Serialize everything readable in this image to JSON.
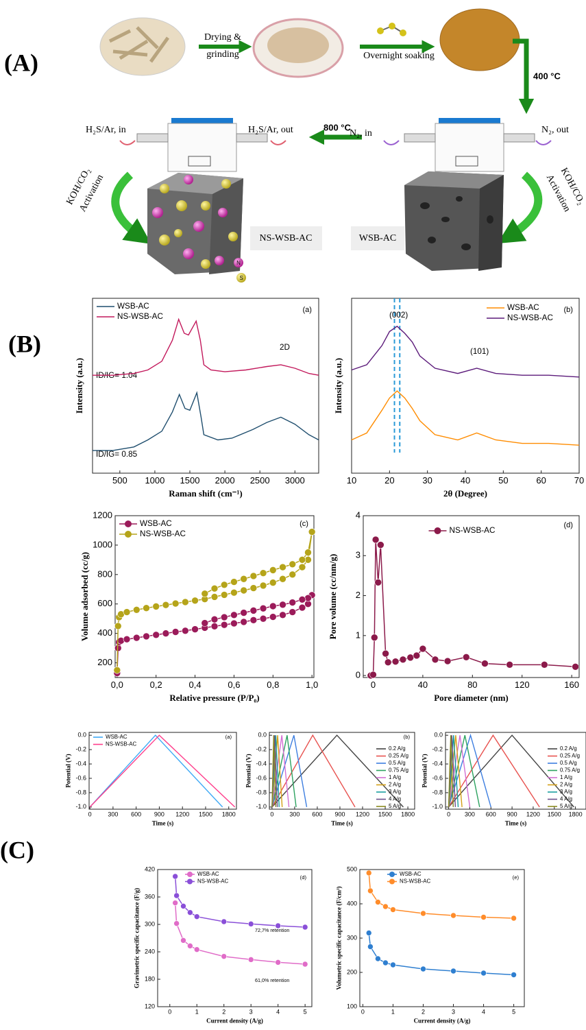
{
  "panel_labels": [
    "(A)",
    "(B)",
    "(C)"
  ],
  "scheme": {
    "drying_label": [
      "Drying &",
      "grinding"
    ],
    "soaking_label": "Overnight soaking",
    "carbonization_temp": "400 °C",
    "sulfurization_temp": "800 °C",
    "gas_left_in": "H₂S/Ar, in",
    "gas_left_out": "H₂S/Ar, out",
    "gas_right_in": "N₂, in",
    "gas_right_out": "N₂, out",
    "activation_left": [
      "KOH/CO₂",
      "Activation"
    ],
    "activation_right": [
      "KOH/CO₂",
      "Activation"
    ],
    "product_left": "NS-WSB-AC",
    "product_right": "WSB-AC",
    "dopant_legend": [
      "N",
      "S"
    ]
  },
  "chart_data": [
    {
      "type": "line",
      "tag": "(a)",
      "xlabel": "Raman shift (cm⁻¹)",
      "ylabel": "Intensity (a.u.)",
      "xlim": [
        110,
        3340
      ],
      "ylim": [
        0,
        10
      ],
      "xticks": [
        500,
        1000,
        1500,
        2000,
        2500,
        3000
      ],
      "legend": "upper left",
      "marker": false,
      "annotations": [
        "ID/IG= 1.04",
        "ID/IG= 0.85",
        "2D"
      ],
      "series": [
        {
          "name": "WSB-AC",
          "color": "#1f4e6e",
          "x": [
            110,
            400,
            700,
            900,
            1100,
            1250,
            1350,
            1430,
            1500,
            1600,
            1660,
            1700,
            1900,
            2100,
            2400,
            2600,
            2800,
            3000,
            3200,
            3340
          ],
          "values": [
            1.3,
            1.3,
            1.5,
            1.9,
            2.4,
            3.5,
            4.5,
            3.7,
            3.6,
            4.6,
            3.2,
            2.2,
            1.9,
            2.0,
            2.5,
            2.9,
            3.2,
            2.8,
            2.2,
            1.9
          ]
        },
        {
          "name": "NS-WSB-AC",
          "color": "#c2185b",
          "x": [
            110,
            400,
            700,
            900,
            1100,
            1250,
            1340,
            1420,
            1480,
            1590,
            1650,
            1700,
            1800,
            2000,
            2300,
            2600,
            2800,
            3000,
            3200,
            3340
          ],
          "values": [
            5.6,
            5.6,
            5.7,
            5.9,
            6.4,
            7.6,
            8.8,
            8.0,
            7.9,
            8.7,
            7.6,
            6.2,
            5.9,
            5.8,
            5.9,
            6.1,
            6.2,
            6.0,
            5.7,
            5.6
          ]
        }
      ]
    },
    {
      "type": "line",
      "tag": "(b)",
      "xlabel": "2θ (Degree)",
      "ylabel": "Intensity (a.u.)",
      "xlim": [
        10,
        70
      ],
      "ylim": [
        0,
        10
      ],
      "xticks": [
        10,
        20,
        30,
        40,
        50,
        60,
        70
      ],
      "legend": "upper right",
      "marker": false,
      "annotations": [
        "(002)",
        "(101)"
      ],
      "reference_lines": [
        21.3,
        22.7
      ],
      "series": [
        {
          "name": "WSB-AC",
          "color": "#ff8c00",
          "x": [
            10,
            14,
            18,
            20,
            22,
            24,
            26,
            28,
            32,
            38,
            43,
            48,
            55,
            62,
            70
          ],
          "values": [
            1.9,
            2.3,
            3.6,
            4.3,
            4.7,
            4.3,
            3.7,
            3.0,
            2.2,
            1.9,
            2.3,
            1.9,
            1.7,
            1.7,
            1.6
          ]
        },
        {
          "name": "NS-WSB-AC",
          "color": "#5b1a7a",
          "x": [
            10,
            14,
            18,
            20,
            22,
            24,
            26,
            28,
            32,
            38,
            43,
            48,
            55,
            62,
            70
          ],
          "values": [
            5.9,
            6.2,
            7.3,
            8.1,
            8.4,
            8.0,
            7.5,
            6.7,
            6.0,
            5.7,
            6.0,
            5.7,
            5.6,
            5.6,
            5.5
          ]
        }
      ]
    },
    {
      "type": "line",
      "tag": "(c)",
      "xlabel": "Relative pressure (P/P₀)",
      "ylabel": "Volume adsorbed (cc/g)",
      "xlim": [
        -0.01,
        1.01
      ],
      "ylim": [
        100,
        1200
      ],
      "xticks": [
        {
          "value": 0,
          "label": "0,0"
        },
        {
          "value": 0.2,
          "label": "0,2"
        },
        {
          "value": 0.4,
          "label": "0,4"
        },
        {
          "value": 0.6,
          "label": "0,6"
        },
        {
          "value": 0.8,
          "label": "0,8"
        },
        {
          "value": 1,
          "label": "1,0"
        }
      ],
      "yticks": [
        200,
        400,
        600,
        800,
        1000,
        1200
      ],
      "legend": "upper left",
      "marker": true,
      "series": [
        {
          "name": "WSB-AC",
          "color": "#9b1b5a",
          "x": [
            0,
            0.005,
            0.01,
            0.02,
            0.05,
            0.1,
            0.15,
            0.2,
            0.25,
            0.3,
            0.35,
            0.4,
            0.45,
            0.5,
            0.55,
            0.6,
            0.65,
            0.7,
            0.75,
            0.8,
            0.85,
            0.9,
            0.95,
            0.98,
            1.0,
            0.98,
            0.95,
            0.9,
            0.85,
            0.8,
            0.75,
            0.7,
            0.65,
            0.6,
            0.55,
            0.5,
            0.45
          ],
          "values": [
            130,
            300,
            340,
            350,
            360,
            370,
            380,
            390,
            400,
            410,
            418,
            428,
            438,
            448,
            458,
            468,
            478,
            490,
            500,
            512,
            525,
            545,
            575,
            600,
            660,
            640,
            630,
            610,
            595,
            585,
            570,
            555,
            540,
            525,
            510,
            495,
            470
          ]
        },
        {
          "name": "NS-WSB-AC",
          "color": "#b5a41a",
          "x": [
            0,
            0.005,
            0.01,
            0.02,
            0.05,
            0.1,
            0.15,
            0.2,
            0.25,
            0.3,
            0.35,
            0.4,
            0.45,
            0.5,
            0.55,
            0.6,
            0.65,
            0.7,
            0.75,
            0.8,
            0.85,
            0.9,
            0.95,
            0.98,
            1.0,
            0.98,
            0.95,
            0.9,
            0.85,
            0.8,
            0.75,
            0.7,
            0.65,
            0.6,
            0.55,
            0.5,
            0.45
          ],
          "values": [
            150,
            450,
            510,
            530,
            545,
            560,
            572,
            583,
            593,
            603,
            613,
            623,
            633,
            648,
            662,
            677,
            692,
            708,
            725,
            745,
            770,
            800,
            850,
            900,
            1090,
            950,
            900,
            870,
            850,
            830,
            810,
            790,
            770,
            750,
            730,
            705,
            670
          ]
        }
      ]
    },
    {
      "type": "line",
      "tag": "(d)",
      "xlabel": "Pore diameter (nm)",
      "ylabel": "Pore volume (cc/nm/g)",
      "xlim": [
        -8,
        166
      ],
      "ylim": [
        -0.05,
        4
      ],
      "xticks": [
        0,
        40,
        80,
        120,
        160
      ],
      "yticks": [
        0,
        1,
        2,
        3,
        4
      ],
      "legend": "upper center",
      "marker": true,
      "series": [
        {
          "name": "NS-WSB-AC",
          "color": "#8b1a4a",
          "x": [
            -2,
            0,
            1,
            2,
            4,
            6,
            10,
            12,
            18,
            24,
            30,
            35,
            40,
            50,
            60,
            75,
            90,
            110,
            138,
            163
          ],
          "values": [
            0,
            0.02,
            0.95,
            3.4,
            2.33,
            3.27,
            0.55,
            0.33,
            0.35,
            0.4,
            0.45,
            0.5,
            0.67,
            0.4,
            0.36,
            0.46,
            0.3,
            0.27,
            0.27,
            0.22
          ]
        }
      ]
    },
    {
      "type": "line",
      "tag": "(a)",
      "xlabel": "Time (s)",
      "ylabel": "Potential (V)",
      "xlim": [
        -10,
        1900
      ],
      "ylim": [
        -1.03,
        0.04
      ],
      "xticks": [
        0,
        300,
        600,
        900,
        1200,
        1500,
        1800
      ],
      "yticks": [
        {
          "value": 0,
          "label": "0.0"
        },
        -0.2,
        -0.4,
        -0.6,
        -0.8,
        {
          "value": -1,
          "label": "-1.0"
        }
      ],
      "legend": "upper left",
      "marker": false,
      "series": [
        {
          "name": "WSB-AC",
          "color": "#3fa9f5",
          "x": [
            0,
            850,
            1720
          ],
          "values": [
            -1,
            0,
            -1
          ]
        },
        {
          "name": "NS-WSB-AC",
          "color": "#ff3d8b",
          "x": [
            0,
            900,
            1880
          ],
          "values": [
            -1,
            0,
            -1
          ]
        }
      ]
    },
    {
      "type": "line",
      "tag": "(b)",
      "xlabel": "Time (s)",
      "ylabel": "Potential (V)",
      "xlim": [
        -35,
        1890
      ],
      "ylim": [
        -1.03,
        0.04
      ],
      "xticks": [
        0,
        300,
        600,
        900,
        1200,
        1500,
        1800
      ],
      "yticks": [
        {
          "value": 0,
          "label": "0.0"
        },
        -0.2,
        -0.4,
        -0.6,
        -0.8,
        {
          "value": -1,
          "label": "-1.0"
        }
      ],
      "legend": "right",
      "marker": false,
      "series": [
        {
          "name": "0.2 A/g",
          "color": "#444444",
          "x": [
            0,
            860,
            1740
          ],
          "values": [
            -1,
            0,
            -1
          ]
        },
        {
          "name": "0.25 A/g",
          "color": "#e8524f",
          "x": [
            0,
            540,
            1100
          ],
          "values": [
            -1,
            0,
            -1
          ]
        },
        {
          "name": "0.5 A/g",
          "color": "#3d7ee0",
          "x": [
            0,
            290,
            460
          ],
          "values": [
            -1,
            0,
            -1
          ]
        },
        {
          "name": "0.75 A/g",
          "color": "#2ca25f",
          "x": [
            0,
            200,
            320
          ],
          "values": [
            -1,
            0,
            -1
          ]
        },
        {
          "name": "1 A/g",
          "color": "#d36fd3",
          "x": [
            0,
            130,
            225
          ],
          "values": [
            -1,
            0,
            -1
          ]
        },
        {
          "name": "2 A/g",
          "color": "#d4a017",
          "x": [
            0,
            75,
            135
          ],
          "values": [
            -1,
            0,
            -1
          ]
        },
        {
          "name": "3 A/g",
          "color": "#1a9fa0",
          "x": [
            0,
            50,
            95
          ],
          "values": [
            -1,
            0,
            -1
          ]
        },
        {
          "name": "4 A/g",
          "color": "#6b4f8a",
          "x": [
            0,
            35,
            70
          ],
          "values": [
            -1,
            0,
            -1
          ]
        },
        {
          "name": "5 A/g",
          "color": "#8a8a20",
          "x": [
            0,
            22,
            50
          ],
          "values": [
            -1,
            0,
            -1
          ]
        }
      ]
    },
    {
      "type": "line",
      "xlabel": "Time (s)",
      "ylabel": "Potential (V)",
      "xlim": [
        -45,
        1950
      ],
      "ylim": [
        -1.03,
        0.04
      ],
      "xticks": [
        0,
        300,
        600,
        900,
        1200,
        1500,
        1800
      ],
      "yticks": [
        {
          "value": 0,
          "label": "0.0"
        },
        -0.2,
        -0.4,
        -0.6,
        -0.8,
        {
          "value": -1,
          "label": "-1.0"
        }
      ],
      "legend": "right",
      "marker": false,
      "series": [
        {
          "name": "0.2 A/g",
          "color": "#444444",
          "x": [
            0,
            900,
            1780
          ],
          "values": [
            -1,
            0,
            -1
          ]
        },
        {
          "name": "0.25 A/g",
          "color": "#e8524f",
          "x": [
            0,
            630,
            1290
          ],
          "values": [
            -1,
            0,
            -1
          ]
        },
        {
          "name": "0.5 A/g",
          "color": "#3d7ee0",
          "x": [
            0,
            310,
            600
          ],
          "values": [
            -1,
            0,
            -1
          ]
        },
        {
          "name": "0.75 A/g",
          "color": "#2ca25f",
          "x": [
            0,
            230,
            440
          ],
          "values": [
            -1,
            0,
            -1
          ]
        },
        {
          "name": "1 A/g",
          "color": "#d36fd3",
          "x": [
            0,
            160,
            300
          ],
          "values": [
            -1,
            0,
            -1
          ]
        },
        {
          "name": "2 A/g",
          "color": "#d4a017",
          "x": [
            0,
            100,
            190
          ],
          "values": [
            -1,
            0,
            -1
          ]
        },
        {
          "name": "3 A/g",
          "color": "#1a9fa0",
          "x": [
            0,
            70,
            135
          ],
          "values": [
            -1,
            0,
            -1
          ]
        },
        {
          "name": "4 A/g",
          "color": "#6b4f8a",
          "x": [
            0,
            45,
            95
          ],
          "values": [
            -1,
            0,
            -1
          ]
        },
        {
          "name": "5 A/g",
          "color": "#8a8a20",
          "x": [
            0,
            30,
            65
          ],
          "values": [
            -1,
            0,
            -1
          ]
        }
      ]
    },
    {
      "type": "line",
      "tag": "(d)",
      "xlabel": "Current density (A/g)",
      "ylabel": "Gravimetric specific capacitance (F/g)",
      "xlim": [
        -0.45,
        5.25
      ],
      "ylim": [
        120,
        420
      ],
      "xticks": [
        0,
        1,
        2,
        3,
        4,
        5
      ],
      "yticks": [
        120,
        180,
        240,
        300,
        360,
        420
      ],
      "legend": "upper left",
      "marker": true,
      "annotations": [
        "72,7% retention",
        "61,0% retention"
      ],
      "series": [
        {
          "name": "WSB-AC",
          "color": "#e06cc8",
          "x": [
            0.2,
            0.25,
            0.5,
            0.75,
            1,
            2,
            3,
            4,
            5
          ],
          "values": [
            347,
            302,
            265,
            253,
            245,
            230,
            223,
            217,
            213
          ]
        },
        {
          "name": "NS-WSB-AC",
          "color": "#8a4fd8",
          "x": [
            0.2,
            0.25,
            0.5,
            0.75,
            1,
            2,
            3,
            4,
            5
          ],
          "values": [
            405,
            363,
            340,
            326,
            317,
            306,
            301,
            297,
            294
          ]
        }
      ]
    },
    {
      "type": "line",
      "tag": "(e)",
      "xlabel": "Current density (A/g)",
      "ylabel": "Volumetric specific capacitance (F/cm³)",
      "xlim": [
        -0.1,
        5.35
      ],
      "ylim": [
        100,
        500
      ],
      "xticks": [
        0,
        1,
        2,
        3,
        4,
        5
      ],
      "yticks": [
        100,
        200,
        300,
        400,
        500
      ],
      "legend": "upper left",
      "marker": true,
      "series": [
        {
          "name": "WSB-AC",
          "color": "#2f7fd0",
          "x": [
            0.2,
            0.25,
            0.5,
            0.75,
            1,
            2,
            3,
            4,
            5
          ],
          "values": [
            315,
            275,
            240,
            228,
            222,
            210,
            204,
            198,
            193
          ]
        },
        {
          "name": "NS-WSB-AC",
          "color": "#ff8c2a",
          "x": [
            0.2,
            0.25,
            0.5,
            0.75,
            1,
            2,
            3,
            4,
            5
          ],
          "values": [
            490,
            438,
            405,
            392,
            383,
            372,
            366,
            361,
            358
          ]
        }
      ]
    }
  ]
}
